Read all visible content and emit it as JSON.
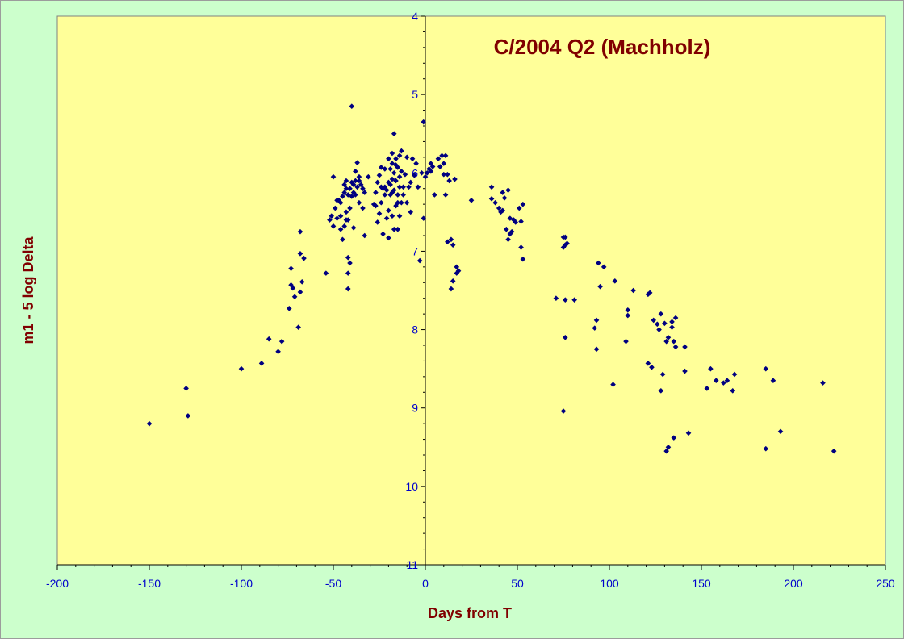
{
  "chart_data": {
    "type": "scatter",
    "title": "C/2004 Q2 (Machholz)",
    "xlabel": "Days from T",
    "ylabel": "m1 - 5 log Delta",
    "xlim": [
      -200,
      250
    ],
    "ylim": [
      4,
      11
    ],
    "y_inverted": true,
    "x_ticks": [
      -200,
      -150,
      -100,
      -50,
      0,
      50,
      100,
      150,
      200,
      250
    ],
    "y_ticks": [
      4,
      5,
      6,
      7,
      8,
      9,
      10,
      11
    ],
    "grid": false,
    "colors": {
      "background": "#ccffcc",
      "plot_area": "#ffff99",
      "marker": "#000080",
      "title": "#800000",
      "tick_labels": "#0000cc"
    },
    "series": [
      {
        "marker": "diamond",
        "points": [
          [
            -150,
            9.2
          ],
          [
            -130,
            8.75
          ],
          [
            -129,
            9.1
          ],
          [
            -100,
            8.5
          ],
          [
            -89,
            8.43
          ],
          [
            -85,
            8.12
          ],
          [
            -80,
            8.28
          ],
          [
            -78,
            8.15
          ],
          [
            -74,
            7.73
          ],
          [
            -73,
            7.43
          ],
          [
            -73,
            7.22
          ],
          [
            -72,
            7.47
          ],
          [
            -71,
            7.58
          ],
          [
            -69,
            7.97
          ],
          [
            -68,
            7.52
          ],
          [
            -68,
            7.03
          ],
          [
            -68,
            6.75
          ],
          [
            -67,
            7.39
          ],
          [
            -66,
            7.09
          ],
          [
            -54,
            7.28
          ],
          [
            -52,
            6.6
          ],
          [
            -51,
            6.55
          ],
          [
            -50,
            6.68
          ],
          [
            -50,
            6.05
          ],
          [
            -49,
            6.45
          ],
          [
            -48,
            6.58
          ],
          [
            -48,
            6.35
          ],
          [
            -47,
            6.35
          ],
          [
            -46,
            6.72
          ],
          [
            -46,
            6.55
          ],
          [
            -46,
            6.38
          ],
          [
            -45,
            6.85
          ],
          [
            -45,
            6.3
          ],
          [
            -44,
            6.15
          ],
          [
            -44,
            6.68
          ],
          [
            -44,
            6.25
          ],
          [
            -43,
            6.2
          ],
          [
            -43,
            6.5
          ],
          [
            -43,
            6.6
          ],
          [
            -43,
            6.1
          ],
          [
            -42,
            6.6
          ],
          [
            -42,
            7.08
          ],
          [
            -42,
            7.28
          ],
          [
            -42,
            6.28
          ],
          [
            -42,
            7.48
          ],
          [
            -41,
            6.45
          ],
          [
            -41,
            6.2
          ],
          [
            -41,
            7.15
          ],
          [
            -40,
            6.3
          ],
          [
            -40,
            6.12
          ],
          [
            -40,
            5.15
          ],
          [
            -39,
            6.7
          ],
          [
            -39,
            6.25
          ],
          [
            -39,
            6.15
          ],
          [
            -38,
            6.1
          ],
          [
            -38,
            6.28
          ],
          [
            -38,
            5.98
          ],
          [
            -37,
            5.87
          ],
          [
            -37,
            6.18
          ],
          [
            -36,
            6.1
          ],
          [
            -36,
            6.38
          ],
          [
            -36,
            6.05
          ],
          [
            -35,
            6.15
          ],
          [
            -34,
            6.2
          ],
          [
            -34,
            6.45
          ],
          [
            -33,
            6.25
          ],
          [
            -33,
            6.8
          ],
          [
            -31,
            6.05
          ],
          [
            -28,
            6.4
          ],
          [
            -27,
            6.42
          ],
          [
            -27,
            6.25
          ],
          [
            -26,
            6.63
          ],
          [
            -26,
            6.12
          ],
          [
            -25,
            6.52
          ],
          [
            -25,
            6.03
          ],
          [
            -24,
            6.38
          ],
          [
            -24,
            6.18
          ],
          [
            -24,
            5.93
          ],
          [
            -23,
            6.78
          ],
          [
            -23,
            6.2
          ],
          [
            -22,
            6.18
          ],
          [
            -22,
            5.95
          ],
          [
            -22,
            6.28
          ],
          [
            -21,
            6.58
          ],
          [
            -21,
            6.22
          ],
          [
            -20,
            6.83
          ],
          [
            -20,
            6.12
          ],
          [
            -20,
            5.82
          ],
          [
            -20,
            6.48
          ],
          [
            -19,
            5.95
          ],
          [
            -19,
            6.28
          ],
          [
            -19,
            6.15
          ],
          [
            -18,
            5.88
          ],
          [
            -18,
            6.08
          ],
          [
            -18,
            6.55
          ],
          [
            -18,
            6.25
          ],
          [
            -18,
            5.75
          ],
          [
            -17,
            5.5
          ],
          [
            -17,
            6.72
          ],
          [
            -17,
            6.22
          ],
          [
            -17,
            6.0
          ],
          [
            -16,
            5.9
          ],
          [
            -16,
            6.42
          ],
          [
            -16,
            5.82
          ],
          [
            -16,
            6.1
          ],
          [
            -15,
            6.38
          ],
          [
            -15,
            6.72
          ],
          [
            -15,
            5.93
          ],
          [
            -15,
            6.28
          ],
          [
            -14,
            6.55
          ],
          [
            -14,
            5.78
          ],
          [
            -14,
            6.18
          ],
          [
            -14,
            6.05
          ],
          [
            -13,
            5.98
          ],
          [
            -13,
            6.38
          ],
          [
            -13,
            5.72
          ],
          [
            -12,
            6.18
          ],
          [
            -12,
            6.28
          ],
          [
            -11,
            6.02
          ],
          [
            -10,
            6.38
          ],
          [
            -10,
            5.8
          ],
          [
            -9,
            6.18
          ],
          [
            -8,
            6.12
          ],
          [
            -8,
            6.5
          ],
          [
            -7,
            5.82
          ],
          [
            -6,
            6.03
          ],
          [
            -5,
            5.88
          ],
          [
            -4,
            6.18
          ],
          [
            -3,
            7.12
          ],
          [
            -2,
            6.0
          ],
          [
            -1,
            6.58
          ],
          [
            -1,
            5.35
          ],
          [
            0,
            6.05
          ],
          [
            1,
            6.0
          ],
          [
            2,
            5.95
          ],
          [
            3,
            5.98
          ],
          [
            3,
            5.88
          ],
          [
            4,
            5.92
          ],
          [
            5,
            6.28
          ],
          [
            7,
            5.82
          ],
          [
            8,
            5.92
          ],
          [
            9,
            5.78
          ],
          [
            10,
            6.02
          ],
          [
            10,
            5.88
          ],
          [
            11,
            5.78
          ],
          [
            11,
            6.28
          ],
          [
            12,
            6.02
          ],
          [
            12,
            6.88
          ],
          [
            13,
            6.1
          ],
          [
            14,
            7.48
          ],
          [
            14,
            6.85
          ],
          [
            15,
            7.38
          ],
          [
            15,
            6.92
          ],
          [
            16,
            6.08
          ],
          [
            17,
            7.28
          ],
          [
            17,
            7.2
          ],
          [
            18,
            7.25
          ],
          [
            25,
            6.35
          ],
          [
            36,
            6.18
          ],
          [
            36,
            6.33
          ],
          [
            38,
            6.38
          ],
          [
            40,
            6.45
          ],
          [
            41,
            6.5
          ],
          [
            42,
            6.48
          ],
          [
            42,
            6.25
          ],
          [
            43,
            6.32
          ],
          [
            44,
            6.72
          ],
          [
            45,
            6.22
          ],
          [
            45,
            6.85
          ],
          [
            46,
            6.78
          ],
          [
            46,
            6.58
          ],
          [
            47,
            6.75
          ],
          [
            48,
            6.6
          ],
          [
            49,
            6.63
          ],
          [
            51,
            6.45
          ],
          [
            52,
            6.95
          ],
          [
            52,
            6.62
          ],
          [
            53,
            7.1
          ],
          [
            53,
            6.4
          ],
          [
            71,
            7.6
          ],
          [
            75,
            6.95
          ],
          [
            75,
            6.82
          ],
          [
            75,
            9.04
          ],
          [
            76,
            6.92
          ],
          [
            76,
            6.82
          ],
          [
            76,
            7.62
          ],
          [
            76,
            8.1
          ],
          [
            77,
            6.9
          ],
          [
            81,
            7.62
          ],
          [
            92,
            7.98
          ],
          [
            93,
            8.25
          ],
          [
            93,
            7.88
          ],
          [
            94,
            7.15
          ],
          [
            95,
            7.45
          ],
          [
            97,
            7.2
          ],
          [
            102,
            8.7
          ],
          [
            103,
            7.38
          ],
          [
            109,
            8.15
          ],
          [
            110,
            7.75
          ],
          [
            110,
            7.82
          ],
          [
            113,
            7.5
          ],
          [
            121,
            8.43
          ],
          [
            121,
            7.55
          ],
          [
            122,
            7.53
          ],
          [
            123,
            8.48
          ],
          [
            124,
            7.88
          ],
          [
            126,
            7.93
          ],
          [
            127,
            8.0
          ],
          [
            128,
            8.78
          ],
          [
            128,
            7.8
          ],
          [
            129,
            8.57
          ],
          [
            130,
            7.92
          ],
          [
            131,
            8.15
          ],
          [
            131,
            9.55
          ],
          [
            132,
            8.1
          ],
          [
            132,
            9.5
          ],
          [
            134,
            7.97
          ],
          [
            134,
            7.9
          ],
          [
            135,
            9.38
          ],
          [
            135,
            8.15
          ],
          [
            136,
            8.22
          ],
          [
            136,
            7.85
          ],
          [
            141,
            8.53
          ],
          [
            141,
            8.22
          ],
          [
            143,
            9.32
          ],
          [
            153,
            8.75
          ],
          [
            155,
            8.5
          ],
          [
            158,
            8.65
          ],
          [
            162,
            8.68
          ],
          [
            164,
            8.65
          ],
          [
            167,
            8.78
          ],
          [
            168,
            8.57
          ],
          [
            185,
            8.5
          ],
          [
            185,
            9.52
          ],
          [
            189,
            8.65
          ],
          [
            193,
            9.3
          ],
          [
            216,
            8.68
          ],
          [
            222,
            9.55
          ]
        ]
      }
    ]
  }
}
